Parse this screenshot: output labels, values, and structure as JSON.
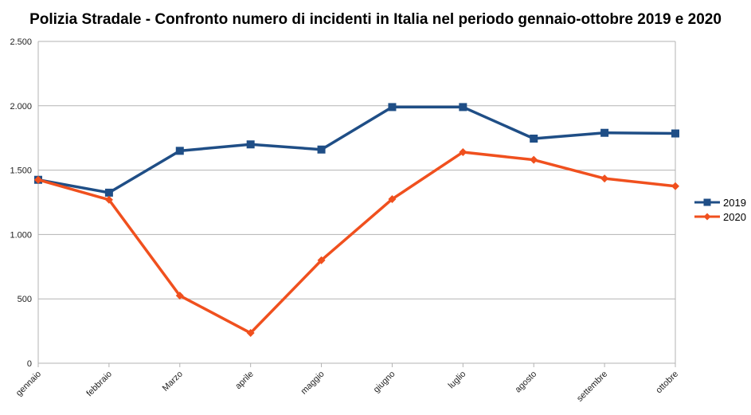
{
  "chart_data": {
    "type": "line",
    "title": "Polizia Stradale - Confronto numero di incidenti in Italia nel periodo gennaio-ottobre 2019 e 2020",
    "xlabel": "",
    "ylabel": "",
    "categories": [
      "gennaio",
      "febbraio",
      "Marzo",
      "aprile",
      "maggio",
      "giugno",
      "luglio",
      "agosto",
      "settembre",
      "ottobre"
    ],
    "series": [
      {
        "name": "2019",
        "color": "#1f4e86",
        "marker": "square",
        "values": [
          1425,
          1325,
          1650,
          1700,
          1660,
          1990,
          1990,
          1745,
          1790,
          1785
        ]
      },
      {
        "name": "2020",
        "color": "#f0501e",
        "marker": "diamond",
        "values": [
          1425,
          1270,
          525,
          235,
          800,
          1275,
          1640,
          1580,
          1435,
          1375
        ]
      }
    ],
    "ylim": [
      0,
      2500
    ],
    "yticks": [
      {
        "value": 0,
        "label": "0"
      },
      {
        "value": 500,
        "label": "500"
      },
      {
        "value": 1000,
        "label": "1.000"
      },
      {
        "value": 1500,
        "label": "1.500"
      },
      {
        "value": 2000,
        "label": "2.000"
      },
      {
        "value": 2500,
        "label": "2.500"
      }
    ],
    "grid": "horizontal",
    "legend_position": "right"
  }
}
